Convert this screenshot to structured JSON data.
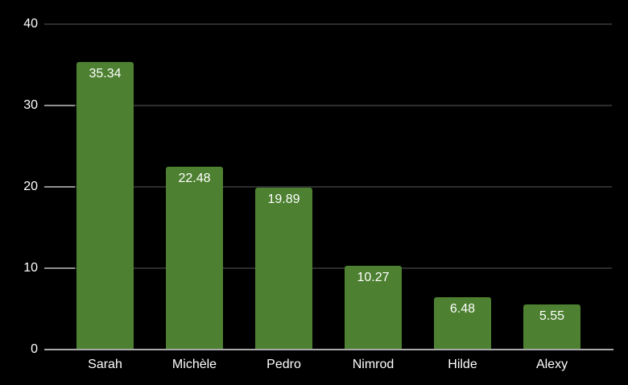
{
  "chart_data": {
    "type": "bar",
    "title": "",
    "xlabel": "",
    "ylabel": "",
    "categories": [
      "Sarah",
      "Michèle",
      "Pedro",
      "Nimrod",
      "Hilde",
      "Alexy"
    ],
    "values": [
      35.34,
      22.48,
      19.89,
      10.27,
      6.48,
      5.55
    ],
    "value_labels": [
      "35.34",
      "22.48",
      "19.89",
      "10.27",
      "6.48",
      "5.55"
    ],
    "ylim": [
      0,
      40
    ],
    "y_ticks": [
      0,
      10,
      20,
      30,
      40
    ],
    "y_tick_labels": [
      "0",
      "10",
      "20",
      "30",
      "40"
    ],
    "grid": true,
    "legend": "none",
    "colors": {
      "background": "#000000",
      "bar": "#4d8031",
      "gridline": "#2d2d2d",
      "tick_mark": "#8f8f8f",
      "axis_line": "#a9a9a9",
      "text": "#ffffff"
    }
  }
}
